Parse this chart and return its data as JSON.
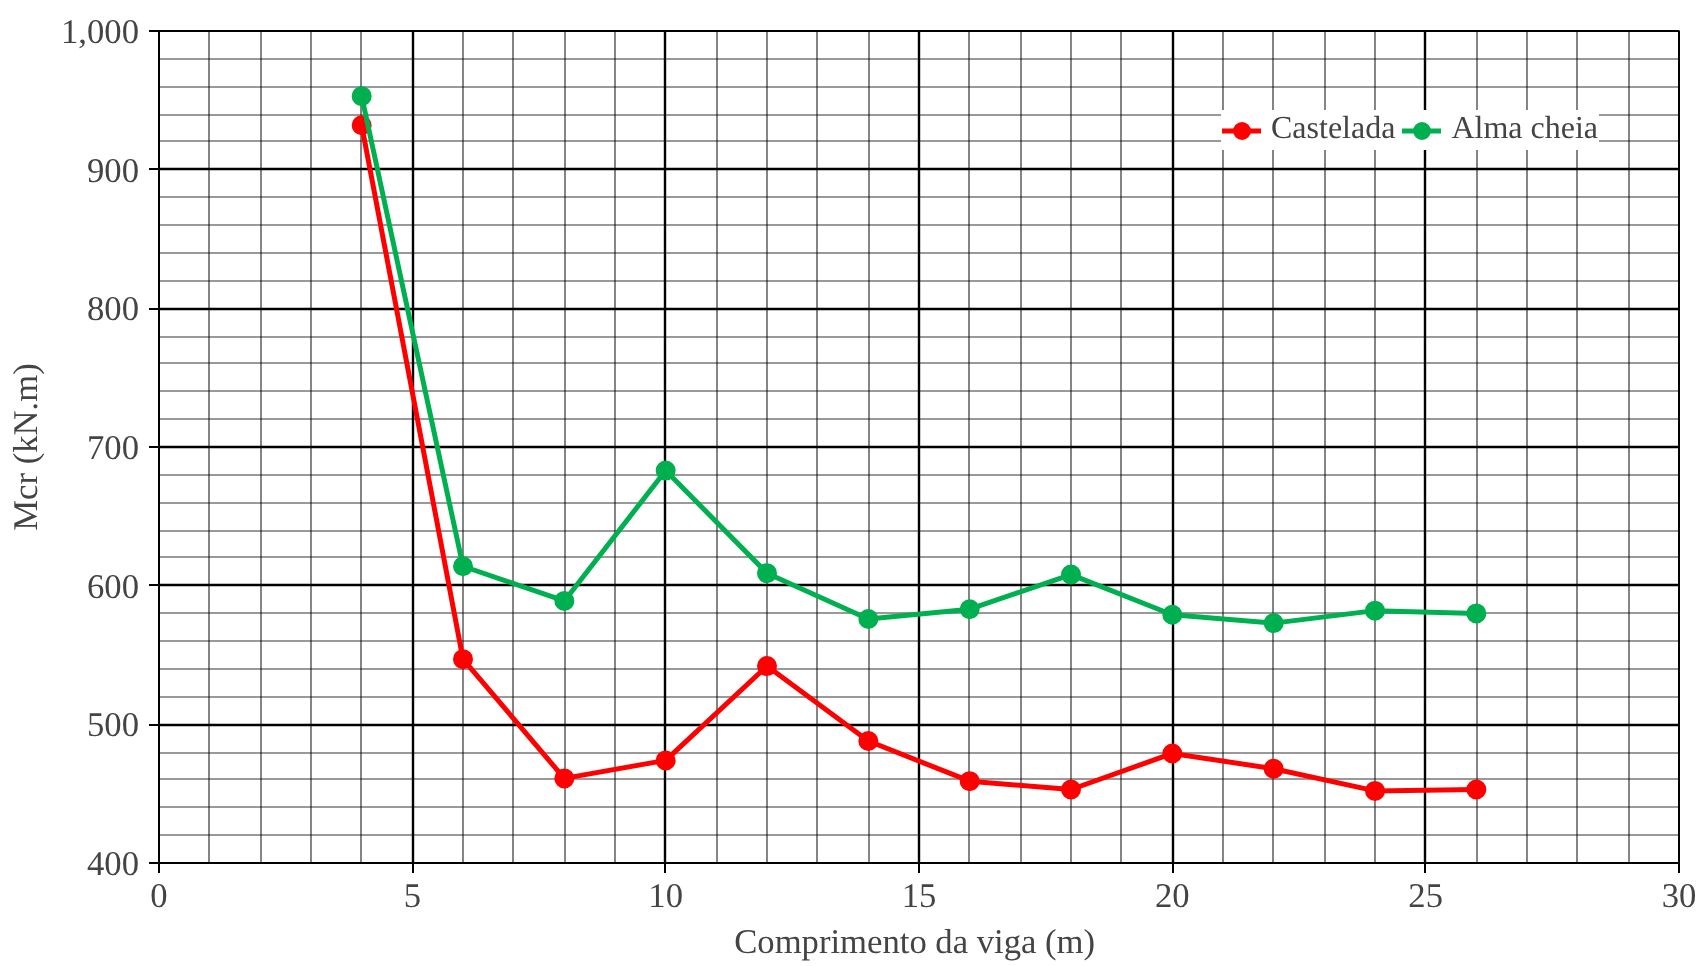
{
  "chart_data": {
    "type": "line",
    "xlabel": "Comprimento  da viga (m)",
    "ylabel": "Mcr (kN.m)",
    "x": [
      4,
      6,
      8,
      10,
      12,
      14,
      16,
      18,
      20,
      22,
      24,
      26
    ],
    "series": [
      {
        "name": "Castelada",
        "color": "#ff0000",
        "values": [
          932,
          547,
          461,
          474,
          542,
          488,
          459,
          453,
          479,
          468,
          452,
          453
        ]
      },
      {
        "name": "Alma cheia",
        "color": "#00b050",
        "values": [
          953,
          614,
          589,
          683,
          609,
          576,
          583,
          608,
          579,
          573,
          582,
          580
        ]
      }
    ],
    "xlim": [
      0,
      30
    ],
    "xticks": [
      0,
      5,
      10,
      15,
      20,
      25,
      30
    ],
    "ylim": [
      400,
      1000
    ],
    "yticks": [
      400,
      500,
      600,
      700,
      800,
      900,
      {
        "value": 1000,
        "label": "1,000"
      }
    ],
    "grid": true,
    "legend": "top right",
    "marker": "circle",
    "line_style": "solid"
  }
}
